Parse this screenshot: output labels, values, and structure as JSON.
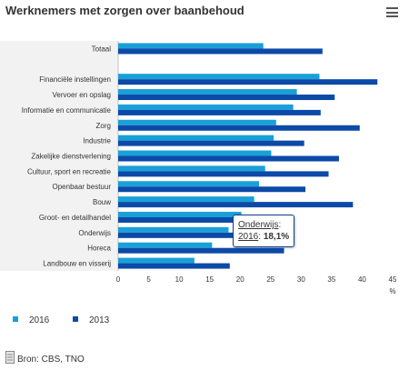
{
  "title": "Werknemers met zorgen over baanbehoud",
  "menu_icon": "hamburger-menu-icon",
  "colors": {
    "series_2016": "#1aa0d8",
    "series_2013": "#0c4aa8",
    "plot_band": "#f2f2f2"
  },
  "chart_data": {
    "type": "bar",
    "orientation": "horizontal",
    "categories": [
      "Totaal",
      "",
      "Financiële instellingen",
      "Vervoer en opslag",
      "Informatie en communicatie",
      "Zorg",
      "Industrie",
      "Zakelijke dienstverlening",
      "Cultuur, sport en recreatie",
      "Openbaar bestuur",
      "Bouw",
      "Groot- en detailhandel",
      "Onderwijs",
      "Horeca",
      "Landbouw en visserij"
    ],
    "series": [
      {
        "name": "2016",
        "values": [
          23.8,
          null,
          33.0,
          29.3,
          28.7,
          25.9,
          25.5,
          25.1,
          24.1,
          23.1,
          22.3,
          20.2,
          18.1,
          15.4,
          12.5
        ]
      },
      {
        "name": "2013",
        "values": [
          33.5,
          null,
          42.5,
          35.5,
          33.2,
          39.6,
          30.5,
          36.2,
          34.5,
          30.7,
          38.5,
          19.0,
          20.3,
          27.2,
          18.3
        ]
      }
    ],
    "x_ticks": [
      "0",
      "5",
      "10",
      "15",
      "20",
      "25",
      "30",
      "35",
      "40",
      "45"
    ],
    "xlim": [
      0,
      45
    ],
    "xunit": "%",
    "grid": false,
    "legend_position": "bottom-left"
  },
  "tooltip": {
    "category": "Onderwijs",
    "series": "2016",
    "value": "18,1%"
  },
  "legend": {
    "items": [
      {
        "label": "2016"
      },
      {
        "label": "2013"
      }
    ]
  },
  "source": {
    "text": "Bron: CBS, TNO",
    "icon": "document-icon"
  }
}
